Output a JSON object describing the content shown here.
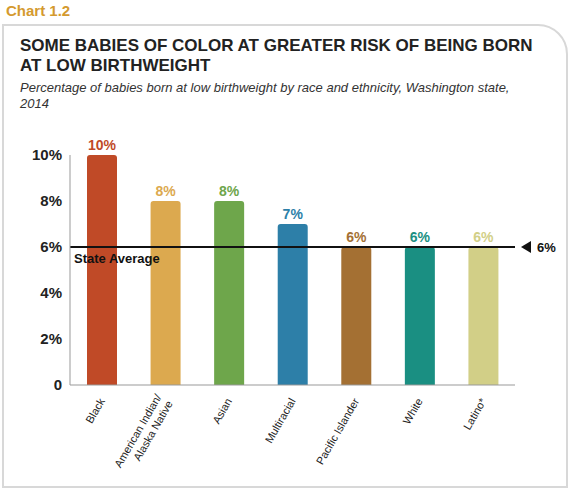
{
  "header": {
    "label": "Chart 1.2"
  },
  "chart_data": {
    "type": "bar",
    "title": "SOME BABIES OF COLOR AT GREATER RISK OF BEING BORN AT LOW BIRTHWEIGHT",
    "subtitle": "Percentage of babies born at low birthweight by race and ethnicity, Washington state, 2014",
    "categories": [
      "Black",
      "American Indian/ Alaska Native",
      "Asian",
      "Multiracial",
      "Pacific Islander",
      "White",
      "Latino*"
    ],
    "values": [
      10,
      8,
      8,
      7,
      6,
      6,
      6
    ],
    "value_labels": [
      "10%",
      "8%",
      "8%",
      "7%",
      "6%",
      "6%",
      "6%"
    ],
    "colors": [
      "#c04a27",
      "#dca94f",
      "#6ea64b",
      "#2d7fa8",
      "#a47033",
      "#1a8f82",
      "#d2cf87"
    ],
    "data_labels": true,
    "ylim": [
      0,
      10
    ],
    "yticks": [
      0,
      {
        "value": 2,
        "label": "2%"
      },
      {
        "value": 4,
        "label": "4%"
      },
      {
        "value": 6,
        "label": "6%"
      },
      {
        "value": 8,
        "label": "8%"
      },
      {
        "value": 10,
        "label": "10%"
      }
    ],
    "grid": false,
    "annotations": [
      {
        "text": "State Average",
        "y": 6,
        "label": "6%"
      }
    ]
  }
}
